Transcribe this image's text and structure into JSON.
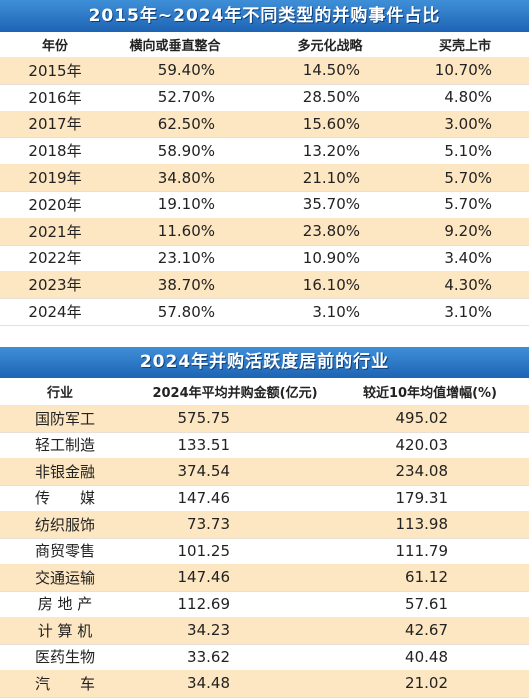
{
  "table1": {
    "title": "2015年~2024年不同类型的并购事件占比",
    "header": [
      "年份",
      "横向或垂直整合",
      "多元化战略",
      "买壳上市"
    ],
    "rows": [
      [
        "2015年",
        "59.40%",
        "14.50%",
        "10.70%"
      ],
      [
        "2016年",
        "52.70%",
        "28.50%",
        "4.80%"
      ],
      [
        "2017年",
        "62.50%",
        "15.60%",
        "3.00%"
      ],
      [
        "2018年",
        "58.90%",
        "13.20%",
        "5.10%"
      ],
      [
        "2019年",
        "34.80%",
        "21.10%",
        "5.70%"
      ],
      [
        "2020年",
        "19.10%",
        "35.70%",
        "5.70%"
      ],
      [
        "2021年",
        "11.60%",
        "23.80%",
        "9.20%"
      ],
      [
        "2022年",
        "23.10%",
        "10.90%",
        "3.40%"
      ],
      [
        "2023年",
        "38.70%",
        "16.10%",
        "4.30%"
      ],
      [
        "2024年",
        "57.80%",
        "3.10%",
        "3.10%"
      ]
    ]
  },
  "table2": {
    "title": "2024年并购活跃度居前的行业",
    "header": [
      "行业",
      "2024年平均并购金额(亿元)",
      "较近10年均值增幅(%)"
    ],
    "rows": [
      [
        "国防军工",
        "575.75",
        "495.02"
      ],
      [
        "轻工制造",
        "133.51",
        "420.03"
      ],
      [
        "非银金融",
        "374.54",
        "234.08"
      ],
      [
        "传　　媒",
        "147.46",
        "179.31"
      ],
      [
        "纺织服饰",
        "73.73",
        "113.98"
      ],
      [
        "商贸零售",
        "101.25",
        "111.79"
      ],
      [
        "交通运输",
        "147.46",
        "61.12"
      ],
      [
        "房 地 产",
        "112.69",
        "57.61"
      ],
      [
        "计 算 机",
        "34.23",
        "42.67"
      ],
      [
        "医药生物",
        "33.62",
        "40.48"
      ],
      [
        "汽　　车",
        "34.48",
        "21.02"
      ]
    ]
  }
}
